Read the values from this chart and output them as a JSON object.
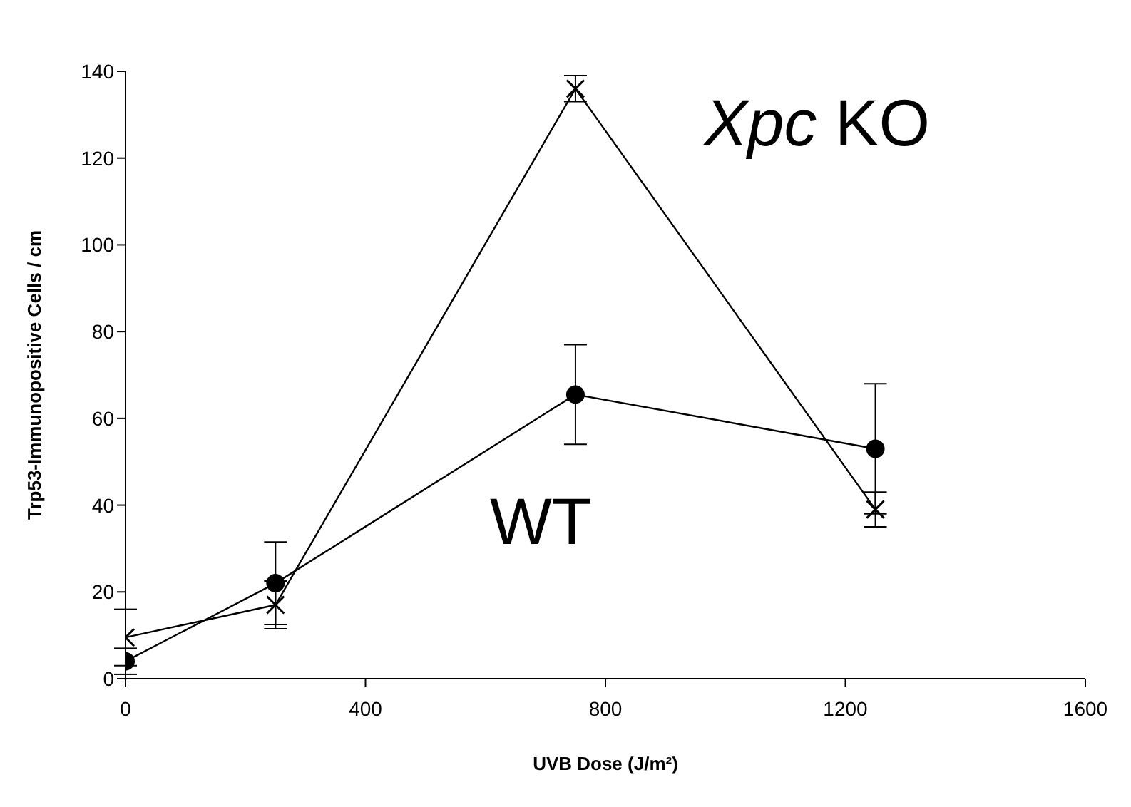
{
  "chart_data": {
    "type": "line",
    "xlabel": "UVB Dose (J/m²)",
    "ylabel": "Trp53-Immunopositive Cells / cm",
    "x": [
      0,
      250,
      750,
      1250
    ],
    "series": [
      {
        "name": "Xpc KO",
        "color": "#000000",
        "marker": "cross",
        "values": [
          9.5,
          17,
          136,
          39
        ],
        "errors": [
          6.5,
          5.5,
          3,
          4
        ]
      },
      {
        "name": "WT",
        "color": "#000000",
        "marker": "circle",
        "values": [
          4,
          22,
          65.5,
          53
        ],
        "errors": [
          3,
          9.5,
          11.5,
          15
        ]
      }
    ],
    "xlim": [
      0,
      1600
    ],
    "xticks": [
      0,
      400,
      800,
      1200,
      1600
    ],
    "ylim": [
      0,
      140
    ],
    "yticks": [
      0,
      20,
      40,
      60,
      80,
      100,
      120,
      140
    ],
    "grid": false,
    "legend": false,
    "line_style": "solid"
  }
}
